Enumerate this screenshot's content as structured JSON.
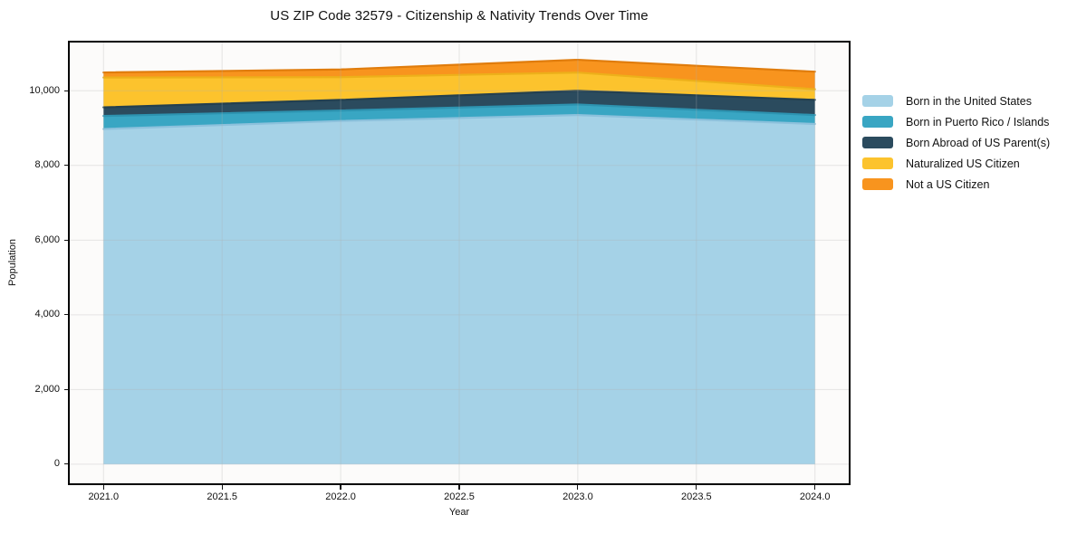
{
  "figure": {
    "title": "US ZIP Code 32579 - Citizenship & Nativity Trends Over Time"
  },
  "chart_data": {
    "type": "area",
    "stacked": true,
    "title": "US ZIP Code 32579 - Citizenship & Nativity Trends Over Time",
    "xlabel": "Year",
    "ylabel": "Population",
    "x": [
      2021,
      2022,
      2023,
      2024
    ],
    "series": [
      {
        "name": "Born in the United States",
        "color": "#a5d2e7",
        "edge_color": "#8cc1dc",
        "values": [
          8975,
          9190,
          9350,
          9110
        ]
      },
      {
        "name": "Born in Puerto Rico / Islands",
        "color": "#39a6c3",
        "edge_color": "#2d93b0",
        "values": [
          350,
          280,
          283,
          240
        ]
      },
      {
        "name": "Born Abroad of US Parent(s)",
        "color": "#2b4b5e",
        "edge_color": "#24404f",
        "values": [
          230,
          285,
          366,
          406
        ]
      },
      {
        "name": "Naturalized US Citizen",
        "color": "#fcc32d",
        "edge_color": "#edb01a",
        "values": [
          800,
          610,
          488,
          285
        ]
      },
      {
        "name": "Not a US Citizen",
        "color": "#f8941e",
        "edge_color": "#e07c0c",
        "values": [
          135,
          205,
          342,
          470
        ]
      }
    ],
    "totals_by_year": [
      10490,
      10570,
      10829,
      10511
    ],
    "xlim": [
      2020.85,
      2024.15
    ],
    "ylim": [
      -560,
      11340
    ],
    "x_ticks": {
      "values": [
        2021.0,
        2021.5,
        2022.0,
        2022.5,
        2023.0,
        2023.5,
        2024.0
      ],
      "labels": [
        "2021.0",
        "2021.5",
        "2022.0",
        "2022.5",
        "2023.0",
        "2023.5",
        "2024.0"
      ]
    },
    "y_ticks": {
      "values": [
        0,
        2000,
        4000,
        6000,
        8000,
        10000
      ],
      "labels": [
        "0",
        "2,000",
        "4,000",
        "6,000",
        "8,000",
        "10,000"
      ]
    },
    "grid": true,
    "grid_color": "#b0b0b0",
    "spine_color": "#000000",
    "legend_position": "right"
  }
}
